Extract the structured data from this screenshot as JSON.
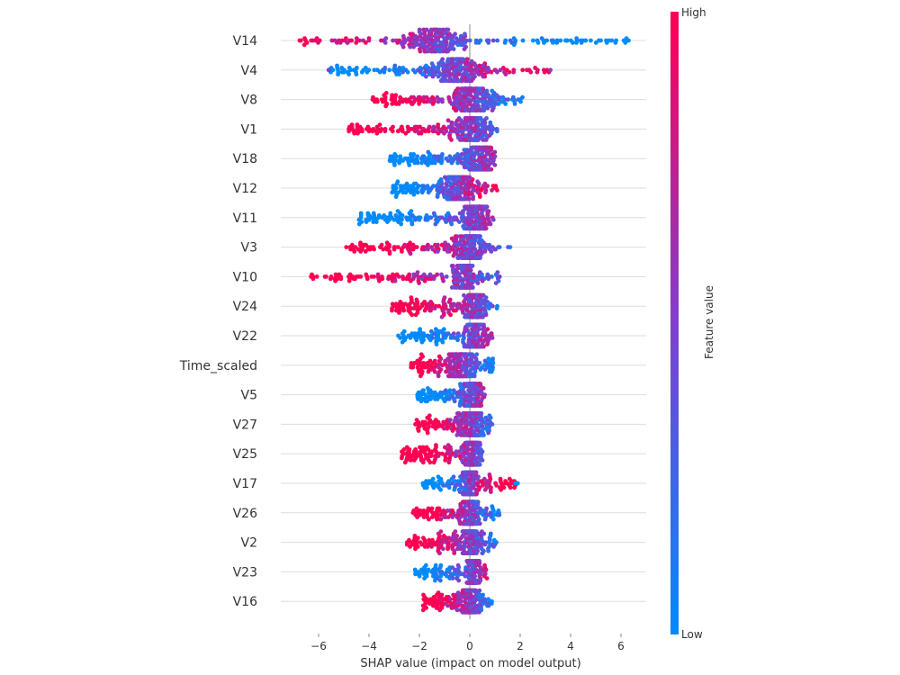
{
  "chart_data": {
    "type": "scatter",
    "subtype": "beeswarm",
    "title": "",
    "xlabel": "SHAP value (impact on model output)",
    "ylabel": "",
    "xlim": [
      -7.5,
      7
    ],
    "xticks": [
      -6,
      -4,
      -2,
      0,
      2,
      4,
      6
    ],
    "xtick_labels": [
      "−6",
      "−4",
      "−2",
      "0",
      "2",
      "4",
      "6"
    ],
    "grid": "horizontal",
    "colors": {
      "high": "#ff0052",
      "low": "#008bfb",
      "mid": "#7f3fd0",
      "zero_line": "#888888",
      "row_line": "#dddddd"
    },
    "colorbar": {
      "title": "Feature value",
      "high_label": "High",
      "low_label": "Low"
    },
    "features": [
      {
        "name": "V14",
        "range": [
          -6.8,
          6.3
        ],
        "high_side": "negative",
        "peak": -1.3,
        "spread": 2.2,
        "outliers": [
          4.6,
          4.8,
          6.3,
          3.6,
          3.8
        ],
        "outlier_color": "low"
      },
      {
        "name": "V4",
        "range": [
          -5.6,
          3.2
        ],
        "high_side": "positive",
        "peak": -0.5,
        "spread": 1.8,
        "outliers": [
          3.2,
          -5.6
        ],
        "outlier_color": "mixed"
      },
      {
        "name": "V8",
        "range": [
          -3.9,
          2.1
        ],
        "high_side": "negative",
        "peak": 0.1,
        "spread": 1.2,
        "outliers": [],
        "outlier_color": "mixed"
      },
      {
        "name": "V1",
        "range": [
          -4.8,
          1.1
        ],
        "high_side": "negative",
        "peak": 0.1,
        "spread": 1.0,
        "outliers": [
          -4.8
        ],
        "outlier_color": "high"
      },
      {
        "name": "V18",
        "range": [
          -3.3,
          1.0
        ],
        "high_side": "positive",
        "peak": 0.4,
        "spread": 0.9,
        "outliers": [],
        "outlier_color": "mixed"
      },
      {
        "name": "V12",
        "range": [
          -3.1,
          1.1
        ],
        "high_side": "positive",
        "peak": -0.5,
        "spread": 1.0,
        "outliers": [],
        "outlier_color": "mixed"
      },
      {
        "name": "V11",
        "range": [
          -4.4,
          1.0
        ],
        "high_side": "positive",
        "peak": 0.2,
        "spread": 0.8,
        "outliers": [],
        "outlier_color": "mixed"
      },
      {
        "name": "V3",
        "range": [
          -4.9,
          1.7
        ],
        "high_side": "negative",
        "peak": 0.0,
        "spread": 0.9,
        "outliers": [
          -4.9
        ],
        "outlier_color": "high"
      },
      {
        "name": "V10",
        "range": [
          -6.3,
          1.2
        ],
        "high_side": "negative",
        "peak": -0.2,
        "spread": 0.7,
        "outliers": [
          -6.3,
          -4.7,
          -4.4,
          -3.8,
          -3.2
        ],
        "outlier_color": "high"
      },
      {
        "name": "V24",
        "range": [
          -3.1,
          1.1
        ],
        "high_side": "negative",
        "peak": 0.2,
        "spread": 0.6,
        "outliers": [],
        "outlier_color": "mixed"
      },
      {
        "name": "V22",
        "range": [
          -2.9,
          0.9
        ],
        "high_side": "positive",
        "peak": 0.2,
        "spread": 0.6,
        "outliers": [],
        "outlier_color": "mixed"
      },
      {
        "name": "Time_scaled",
        "range": [
          -2.4,
          1.0
        ],
        "high_side": "negative",
        "peak": -0.3,
        "spread": 0.8,
        "outliers": [],
        "outlier_color": "mixed"
      },
      {
        "name": "V5",
        "range": [
          -2.1,
          0.6
        ],
        "high_side": "positive",
        "peak": 0.1,
        "spread": 0.5,
        "outliers": [],
        "outlier_color": "mixed"
      },
      {
        "name": "V27",
        "range": [
          -2.2,
          0.9
        ],
        "high_side": "negative",
        "peak": 0.1,
        "spread": 0.6,
        "outliers": [],
        "outlier_color": "mixed"
      },
      {
        "name": "V25",
        "range": [
          -2.7,
          0.5
        ],
        "high_side": "negative",
        "peak": 0.1,
        "spread": 0.5,
        "outliers": [],
        "outlier_color": "mixed"
      },
      {
        "name": "V17",
        "range": [
          -1.9,
          1.9
        ],
        "high_side": "positive",
        "peak": 0.0,
        "spread": 0.5,
        "outliers": [
          1.8,
          1.9
        ],
        "outlier_color": "low"
      },
      {
        "name": "V26",
        "range": [
          -2.3,
          1.2
        ],
        "high_side": "negative",
        "peak": 0.0,
        "spread": 0.5,
        "outliers": [],
        "outlier_color": "mixed"
      },
      {
        "name": "V2",
        "range": [
          -2.5,
          1.1
        ],
        "high_side": "negative",
        "peak": 0.0,
        "spread": 0.5,
        "outliers": [],
        "outlier_color": "mixed"
      },
      {
        "name": "V23",
        "range": [
          -2.2,
          0.7
        ],
        "high_side": "positive",
        "peak": 0.1,
        "spread": 0.3,
        "outliers": [],
        "outlier_color": "mixed"
      },
      {
        "name": "V16",
        "range": [
          -1.9,
          0.9
        ],
        "high_side": "negative",
        "peak": 0.0,
        "spread": 0.5,
        "outliers": [],
        "outlier_color": "mixed"
      }
    ]
  }
}
